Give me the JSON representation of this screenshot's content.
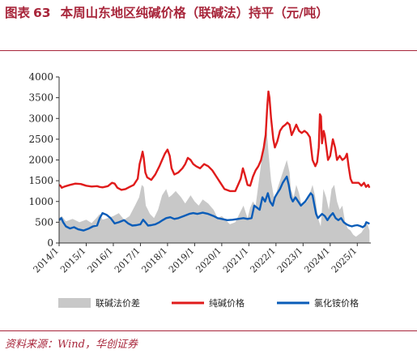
{
  "header": {
    "label": "图表",
    "number": "63",
    "title": "本周山东地区纯碱价格（联碱法）持平（元/吨）"
  },
  "source": "资料来源：Wind，华创证券",
  "chart_data": {
    "type": "line",
    "x_ticks": [
      "2014/1",
      "2015/1",
      "2016/1",
      "2017/1",
      "2018/1",
      "2019/1",
      "2020/1",
      "2021/1",
      "2022/1",
      "2023/1",
      "2024/1",
      "2025/1"
    ],
    "ylim": [
      0,
      4000
    ],
    "y_ticks": [
      0,
      500,
      1000,
      1500,
      2000,
      2500,
      3000,
      3500,
      4000
    ],
    "grid": false,
    "legend_position": "bottom",
    "series": [
      {
        "name": "联碱法价差",
        "kind": "area",
        "color": "#c8c8c8",
        "points": [
          [
            2014.0,
            600
          ],
          [
            2014.1,
            650
          ],
          [
            2014.25,
            520
          ],
          [
            2014.5,
            580
          ],
          [
            2014.75,
            500
          ],
          [
            2015.0,
            560
          ],
          [
            2015.2,
            480
          ],
          [
            2015.4,
            620
          ],
          [
            2015.5,
            700
          ],
          [
            2015.6,
            560
          ],
          [
            2015.8,
            600
          ],
          [
            2016.0,
            650
          ],
          [
            2016.2,
            720
          ],
          [
            2016.4,
            560
          ],
          [
            2016.6,
            650
          ],
          [
            2016.8,
            900
          ],
          [
            2016.95,
            1100
          ],
          [
            2017.05,
            1400
          ],
          [
            2017.12,
            1350
          ],
          [
            2017.2,
            900
          ],
          [
            2017.35,
            700
          ],
          [
            2017.5,
            600
          ],
          [
            2017.65,
            800
          ],
          [
            2017.8,
            1150
          ],
          [
            2017.95,
            1300
          ],
          [
            2018.05,
            1100
          ],
          [
            2018.15,
            1150
          ],
          [
            2018.3,
            1250
          ],
          [
            2018.5,
            1100
          ],
          [
            2018.65,
            950
          ],
          [
            2018.85,
            1150
          ],
          [
            2019.0,
            1000
          ],
          [
            2019.15,
            900
          ],
          [
            2019.3,
            1050
          ],
          [
            2019.5,
            950
          ],
          [
            2019.7,
            800
          ],
          [
            2019.85,
            600
          ],
          [
            2020.0,
            650
          ],
          [
            2020.15,
            550
          ],
          [
            2020.3,
            450
          ],
          [
            2020.5,
            500
          ],
          [
            2020.65,
            700
          ],
          [
            2020.8,
            900
          ],
          [
            2020.95,
            600
          ],
          [
            2021.05,
            850
          ],
          [
            2021.15,
            1000
          ],
          [
            2021.25,
            900
          ],
          [
            2021.35,
            1400
          ],
          [
            2021.45,
            1900
          ],
          [
            2021.55,
            2500
          ],
          [
            2021.65,
            2800
          ],
          [
            2021.72,
            2200
          ],
          [
            2021.82,
            1500
          ],
          [
            2021.95,
            1000
          ],
          [
            2022.05,
            1300
          ],
          [
            2022.15,
            1500
          ],
          [
            2022.25,
            1700
          ],
          [
            2022.35,
            1900
          ],
          [
            2022.4,
            2000
          ],
          [
            2022.5,
            1700
          ],
          [
            2022.55,
            1300
          ],
          [
            2022.65,
            1100
          ],
          [
            2022.75,
            1400
          ],
          [
            2022.85,
            1200
          ],
          [
            2022.95,
            900
          ],
          [
            2023.05,
            950
          ],
          [
            2023.15,
            1000
          ],
          [
            2023.25,
            1200
          ],
          [
            2023.35,
            1400
          ],
          [
            2023.45,
            1100
          ],
          [
            2023.55,
            600
          ],
          [
            2023.65,
            400
          ],
          [
            2023.75,
            1300
          ],
          [
            2023.85,
            1100
          ],
          [
            2023.95,
            800
          ],
          [
            2024.05,
            1300
          ],
          [
            2024.15,
            1400
          ],
          [
            2024.25,
            1000
          ],
          [
            2024.35,
            800
          ],
          [
            2024.45,
            900
          ],
          [
            2024.55,
            500
          ],
          [
            2024.65,
            350
          ],
          [
            2024.75,
            300
          ],
          [
            2024.85,
            200
          ],
          [
            2024.95,
            150
          ],
          [
            2025.05,
            200
          ],
          [
            2025.15,
            250
          ],
          [
            2025.25,
            350
          ],
          [
            2025.35,
            500
          ],
          [
            2025.45,
            300
          ]
        ]
      },
      {
        "name": "纯碱价格",
        "kind": "line",
        "color": "#e01b1b",
        "points": [
          [
            2014.0,
            1400
          ],
          [
            2014.05,
            1380
          ],
          [
            2014.1,
            1330
          ],
          [
            2014.2,
            1360
          ],
          [
            2014.4,
            1400
          ],
          [
            2014.6,
            1430
          ],
          [
            2014.8,
            1420
          ],
          [
            2015.0,
            1380
          ],
          [
            2015.2,
            1360
          ],
          [
            2015.4,
            1370
          ],
          [
            2015.5,
            1350
          ],
          [
            2015.6,
            1340
          ],
          [
            2015.8,
            1370
          ],
          [
            2015.95,
            1450
          ],
          [
            2016.05,
            1430
          ],
          [
            2016.15,
            1330
          ],
          [
            2016.3,
            1280
          ],
          [
            2016.45,
            1300
          ],
          [
            2016.6,
            1350
          ],
          [
            2016.75,
            1400
          ],
          [
            2016.9,
            1550
          ],
          [
            2016.97,
            1900
          ],
          [
            2017.03,
            2050
          ],
          [
            2017.08,
            2200
          ],
          [
            2017.12,
            2050
          ],
          [
            2017.18,
            1700
          ],
          [
            2017.25,
            1580
          ],
          [
            2017.4,
            1520
          ],
          [
            2017.55,
            1650
          ],
          [
            2017.7,
            1850
          ],
          [
            2017.8,
            2000
          ],
          [
            2017.9,
            2150
          ],
          [
            2018.0,
            2250
          ],
          [
            2018.08,
            2100
          ],
          [
            2018.15,
            1800
          ],
          [
            2018.25,
            1650
          ],
          [
            2018.4,
            1700
          ],
          [
            2018.55,
            1800
          ],
          [
            2018.65,
            1900
          ],
          [
            2018.75,
            2050
          ],
          [
            2018.85,
            2000
          ],
          [
            2018.95,
            1900
          ],
          [
            2019.05,
            1850
          ],
          [
            2019.2,
            1800
          ],
          [
            2019.35,
            1900
          ],
          [
            2019.5,
            1850
          ],
          [
            2019.65,
            1750
          ],
          [
            2019.8,
            1600
          ],
          [
            2019.95,
            1450
          ],
          [
            2020.1,
            1300
          ],
          [
            2020.3,
            1250
          ],
          [
            2020.5,
            1250
          ],
          [
            2020.6,
            1400
          ],
          [
            2020.7,
            1550
          ],
          [
            2020.78,
            1800
          ],
          [
            2020.85,
            1650
          ],
          [
            2020.95,
            1400
          ],
          [
            2021.05,
            1380
          ],
          [
            2021.15,
            1600
          ],
          [
            2021.25,
            1750
          ],
          [
            2021.35,
            1850
          ],
          [
            2021.45,
            2000
          ],
          [
            2021.55,
            2300
          ],
          [
            2021.62,
            2600
          ],
          [
            2021.68,
            3300
          ],
          [
            2021.72,
            3650
          ],
          [
            2021.76,
            3500
          ],
          [
            2021.82,
            3000
          ],
          [
            2021.9,
            2500
          ],
          [
            2021.96,
            2300
          ],
          [
            2022.05,
            2450
          ],
          [
            2022.15,
            2700
          ],
          [
            2022.25,
            2800
          ],
          [
            2022.35,
            2850
          ],
          [
            2022.42,
            2900
          ],
          [
            2022.5,
            2850
          ],
          [
            2022.58,
            2600
          ],
          [
            2022.65,
            2700
          ],
          [
            2022.75,
            2850
          ],
          [
            2022.85,
            2700
          ],
          [
            2022.95,
            2650
          ],
          [
            2023.05,
            2700
          ],
          [
            2023.15,
            2650
          ],
          [
            2023.25,
            2550
          ],
          [
            2023.35,
            2000
          ],
          [
            2023.45,
            1850
          ],
          [
            2023.52,
            1950
          ],
          [
            2023.58,
            2300
          ],
          [
            2023.62,
            3100
          ],
          [
            2023.66,
            3050
          ],
          [
            2023.7,
            2400
          ],
          [
            2023.76,
            2700
          ],
          [
            2023.8,
            2600
          ],
          [
            2023.86,
            2300
          ],
          [
            2023.92,
            2000
          ],
          [
            2024.0,
            2100
          ],
          [
            2024.1,
            2500
          ],
          [
            2024.18,
            2300
          ],
          [
            2024.25,
            2000
          ],
          [
            2024.35,
            2100
          ],
          [
            2024.45,
            2000
          ],
          [
            2024.55,
            2050
          ],
          [
            2024.62,
            2150
          ],
          [
            2024.68,
            1850
          ],
          [
            2024.75,
            1550
          ],
          [
            2024.82,
            1450
          ],
          [
            2024.95,
            1450
          ],
          [
            2025.05,
            1450
          ],
          [
            2025.15,
            1380
          ],
          [
            2025.25,
            1450
          ],
          [
            2025.32,
            1350
          ],
          [
            2025.4,
            1400
          ],
          [
            2025.45,
            1330
          ]
        ]
      },
      {
        "name": "氯化铵价格",
        "kind": "line",
        "color": "#0a5cb8",
        "points": [
          [
            2014.0,
            550
          ],
          [
            2014.08,
            600
          ],
          [
            2014.15,
            500
          ],
          [
            2014.25,
            400
          ],
          [
            2014.4,
            350
          ],
          [
            2014.55,
            380
          ],
          [
            2014.7,
            330
          ],
          [
            2014.9,
            300
          ],
          [
            2015.1,
            350
          ],
          [
            2015.25,
            400
          ],
          [
            2015.4,
            420
          ],
          [
            2015.5,
            600
          ],
          [
            2015.6,
            720
          ],
          [
            2015.75,
            680
          ],
          [
            2015.9,
            600
          ],
          [
            2016.05,
            470
          ],
          [
            2016.2,
            500
          ],
          [
            2016.4,
            550
          ],
          [
            2016.55,
            470
          ],
          [
            2016.7,
            420
          ],
          [
            2016.85,
            430
          ],
          [
            2017.0,
            450
          ],
          [
            2017.1,
            560
          ],
          [
            2017.18,
            500
          ],
          [
            2017.28,
            420
          ],
          [
            2017.4,
            430
          ],
          [
            2017.55,
            450
          ],
          [
            2017.7,
            500
          ],
          [
            2017.82,
            550
          ],
          [
            2017.95,
            600
          ],
          [
            2018.1,
            620
          ],
          [
            2018.25,
            580
          ],
          [
            2018.4,
            600
          ],
          [
            2018.6,
            650
          ],
          [
            2018.8,
            700
          ],
          [
            2018.95,
            720
          ],
          [
            2019.1,
            700
          ],
          [
            2019.3,
            730
          ],
          [
            2019.5,
            700
          ],
          [
            2019.7,
            650
          ],
          [
            2019.85,
            600
          ],
          [
            2020.0,
            580
          ],
          [
            2020.2,
            550
          ],
          [
            2020.4,
            560
          ],
          [
            2020.6,
            580
          ],
          [
            2020.8,
            600
          ],
          [
            2020.95,
            580
          ],
          [
            2021.1,
            600
          ],
          [
            2021.2,
            900
          ],
          [
            2021.3,
            850
          ],
          [
            2021.4,
            800
          ],
          [
            2021.5,
            1100
          ],
          [
            2021.6,
            1000
          ],
          [
            2021.7,
            1200
          ],
          [
            2021.78,
            1000
          ],
          [
            2021.88,
            900
          ],
          [
            2021.96,
            1100
          ],
          [
            2022.05,
            1200
          ],
          [
            2022.15,
            1300
          ],
          [
            2022.25,
            1450
          ],
          [
            2022.35,
            1550
          ],
          [
            2022.4,
            1600
          ],
          [
            2022.47,
            1400
          ],
          [
            2022.55,
            1100
          ],
          [
            2022.62,
            1000
          ],
          [
            2022.72,
            1100
          ],
          [
            2022.82,
            1000
          ],
          [
            2022.92,
            900
          ],
          [
            2023.0,
            950
          ],
          [
            2023.08,
            1000
          ],
          [
            2023.18,
            1100
          ],
          [
            2023.28,
            1200
          ],
          [
            2023.35,
            1150
          ],
          [
            2023.42,
            900
          ],
          [
            2023.48,
            700
          ],
          [
            2023.55,
            600
          ],
          [
            2023.62,
            650
          ],
          [
            2023.7,
            700
          ],
          [
            2023.8,
            650
          ],
          [
            2023.9,
            550
          ],
          [
            2024.0,
            650
          ],
          [
            2024.1,
            720
          ],
          [
            2024.2,
            600
          ],
          [
            2024.3,
            550
          ],
          [
            2024.4,
            600
          ],
          [
            2024.5,
            500
          ],
          [
            2024.6,
            450
          ],
          [
            2024.7,
            420
          ],
          [
            2024.8,
            400
          ],
          [
            2024.9,
            420
          ],
          [
            2025.0,
            430
          ],
          [
            2025.1,
            410
          ],
          [
            2025.2,
            380
          ],
          [
            2025.28,
            420
          ],
          [
            2025.33,
            500
          ],
          [
            2025.4,
            480
          ],
          [
            2025.45,
            460
          ]
        ]
      }
    ]
  }
}
